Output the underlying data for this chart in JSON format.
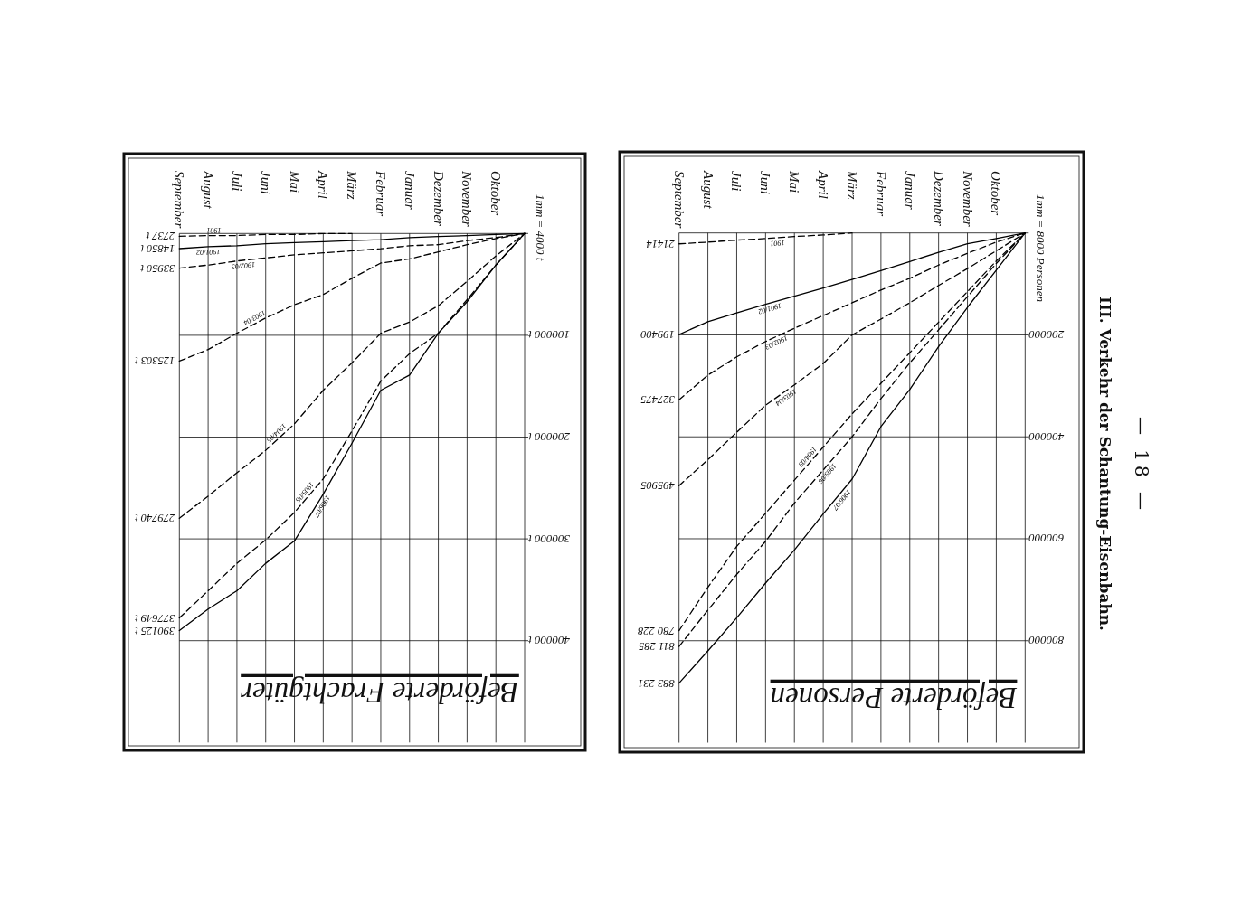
{
  "chart_data": [
    {
      "type": "line",
      "title": "Beförderte Frachtgüter",
      "ylabel": "1mm = 4000 t",
      "categories": [
        "September",
        "August",
        "Juli",
        "Juni",
        "Mai",
        "April",
        "März",
        "Februar",
        "Januar",
        "Dezember",
        "November",
        "Oktober",
        null
      ],
      "ylim": [
        500000,
        0
      ],
      "yticks": [
        {
          "value": 0,
          "label": null
        },
        {
          "value": 100000,
          "label": "100000 t"
        },
        {
          "value": 200000,
          "label": "200000 t"
        },
        {
          "value": 300000,
          "label": "300000 t"
        },
        {
          "value": 400000,
          "label": "400000 t"
        }
      ],
      "grid": true,
      "series": [
        {
          "name": "1901",
          "color": "#000000",
          "line_style": "dashed",
          "values": [
            2737,
            2000,
            2000,
            1000,
            1000,
            0,
            0,
            null,
            null,
            null,
            null,
            null,
            null
          ],
          "value_labels": [
            "2737 t",
            null,
            null,
            null,
            null,
            null,
            null,
            null,
            null,
            null,
            null,
            null,
            null
          ]
        },
        {
          "name": "1901/02",
          "color": "#000000",
          "line_style": "solid",
          "values": [
            14850,
            13000,
            12000,
            10000,
            9000,
            8000,
            7000,
            6000,
            4000,
            3000,
            2000,
            1000,
            0
          ],
          "value_labels": [
            "14850 t",
            null,
            null,
            null,
            null,
            null,
            null,
            null,
            null,
            null,
            null,
            null,
            null
          ]
        },
        {
          "name": "1902/03",
          "color": "#000000",
          "line_style": "dashed",
          "values": [
            33950,
            31000,
            27000,
            24000,
            21000,
            19000,
            17000,
            15000,
            12000,
            11000,
            7000,
            4000,
            0
          ],
          "value_labels": [
            "33950 t",
            null,
            null,
            null,
            null,
            null,
            null,
            null,
            null,
            null,
            null,
            null,
            null
          ]
        },
        {
          "name": "1903/04",
          "color": "#000000",
          "line_style": "dashed",
          "values": [
            125303,
            114000,
            98000,
            83000,
            70000,
            60000,
            44000,
            29000,
            25000,
            18000,
            11000,
            5000,
            0
          ],
          "value_labels": [
            "125303 t",
            null,
            null,
            null,
            null,
            null,
            null,
            null,
            null,
            null,
            null,
            null,
            null
          ]
        },
        {
          "name": "1904/05",
          "color": "#000000",
          "line_style": "dashed",
          "values": [
            279740,
            258000,
            235000,
            213000,
            187000,
            154000,
            127000,
            98000,
            87000,
            71000,
            47000,
            22000,
            0
          ],
          "value_labels": [
            "279740 t",
            null,
            null,
            null,
            null,
            null,
            null,
            null,
            null,
            null,
            null,
            null,
            null
          ]
        },
        {
          "name": "1905/06",
          "color": "#000000",
          "line_style": "dashed",
          "values": [
            377649,
            351000,
            324000,
            301000,
            274000,
            241000,
            194000,
            145000,
            118000,
            98000,
            65000,
            31000,
            0
          ],
          "value_labels": [
            "377649 t",
            null,
            null,
            null,
            null,
            null,
            null,
            null,
            null,
            null,
            null,
            null,
            null
          ]
        },
        {
          "name": "1906/07",
          "color": "#000000",
          "line_style": "solid",
          "values": [
            390125,
            369000,
            351000,
            324000,
            302000,
            256000,
            206000,
            154000,
            139000,
            98000,
            67000,
            31000,
            0
          ],
          "value_labels": [
            "390125 t",
            null,
            null,
            null,
            null,
            null,
            null,
            null,
            null,
            null,
            null,
            null,
            null
          ]
        }
      ]
    },
    {
      "type": "line",
      "title": "Beförderte Personen",
      "ylabel": "1mm = 8000 Personen",
      "annotations": [
        "III. Verkehr der Schantung-Eisenbahn.",
        "— 18 —"
      ],
      "categories": [
        "September",
        "August",
        "Juli",
        "Juni",
        "Mai",
        "April",
        "März",
        "Februar",
        "Januar",
        "Dezember",
        "November",
        "Oktober",
        null
      ],
      "ylim": [
        1000000,
        0
      ],
      "yticks": [
        {
          "value": 0,
          "label": null
        },
        200000,
        400000,
        600000,
        800000
      ],
      "grid": true,
      "series": [
        {
          "name": "1901",
          "color": "#000000",
          "line_style": "dashed",
          "values": [
            21414,
            18000,
            14000,
            11000,
            7000,
            4000,
            0,
            null,
            null,
            null,
            null,
            null,
            null
          ],
          "value_labels": [
            "21414",
            null,
            null,
            null,
            null,
            null,
            null,
            null,
            null,
            null,
            null,
            null,
            null
          ]
        },
        {
          "name": "1901/02",
          "color": "#000000",
          "line_style": "solid",
          "values": [
            199400,
            174000,
            157000,
            140000,
            124000,
            108000,
            91000,
            74000,
            56000,
            38000,
            21000,
            11000,
            0
          ],
          "value_labels": [
            "199400",
            null,
            null,
            null,
            null,
            null,
            null,
            null,
            null,
            null,
            null,
            null,
            null
          ]
        },
        {
          "name": "1902/03",
          "color": "#000000",
          "line_style": "dashed",
          "values": [
            327475,
            279000,
            243000,
            213000,
            187000,
            162000,
            137000,
            112000,
            89000,
            63000,
            40000,
            18000,
            0
          ],
          "value_labels": [
            "327475",
            null,
            null,
            null,
            null,
            null,
            null,
            null,
            null,
            null,
            null,
            null,
            null
          ]
        },
        {
          "name": "1903/04",
          "color": "#000000",
          "line_style": "dashed",
          "values": [
            495905,
            445000,
            391000,
            338000,
            298000,
            256000,
            200000,
            169000,
            137000,
            103000,
            70000,
            35000,
            0
          ],
          "value_labels": [
            "495905",
            null,
            null,
            null,
            null,
            null,
            null,
            null,
            null,
            null,
            null,
            null,
            null
          ]
        },
        {
          "name": "1904/05",
          "color": "#000000",
          "line_style": "dashed",
          "values": [
            780228,
            695000,
            615000,
            550000,
            485000,
            420000,
            355000,
            295000,
            235000,
            175000,
            115000,
            55000,
            0
          ],
          "value_labels": [
            "780 228",
            null,
            null,
            null,
            null,
            null,
            null,
            null,
            null,
            null,
            null,
            null,
            null
          ]
        },
        {
          "name": "1905/06",
          "color": "#000000",
          "line_style": "dashed",
          "values": [
            811285,
            740000,
            670000,
            605000,
            530000,
            465000,
            400000,
            325000,
            255000,
            190000,
            125000,
            60000,
            0
          ],
          "value_labels": [
            "811 285",
            null,
            null,
            null,
            null,
            null,
            null,
            null,
            null,
            null,
            null,
            null,
            null
          ]
        },
        {
          "name": "1906/07",
          "color": "#000000",
          "line_style": "solid",
          "values": [
            883231,
            820000,
            755000,
            687000,
            622000,
            551000,
            483000,
            380000,
            307000,
            223000,
            146000,
            73000,
            0
          ],
          "value_labels": [
            "883 231",
            null,
            null,
            null,
            null,
            null,
            null,
            null,
            null,
            null,
            null,
            null,
            null
          ]
        }
      ]
    }
  ]
}
